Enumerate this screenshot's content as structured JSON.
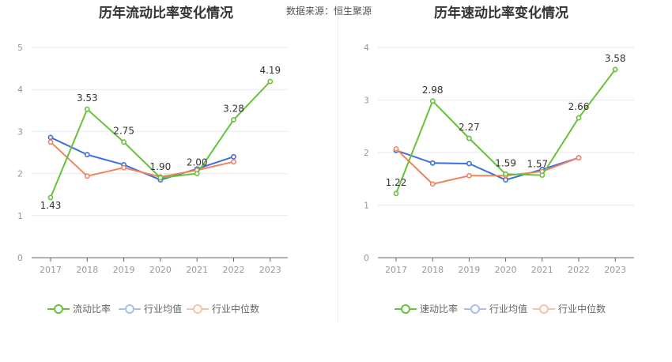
{
  "source_label": "数据来源：恒生聚源",
  "legend_colors": {
    "main": "#67c23a",
    "avg": "#3f6fd8",
    "median": "#f0845c"
  },
  "legend_faded": {
    "avg": "#a9c0ee",
    "median": "#f7c3ac"
  },
  "chart_data": [
    {
      "type": "line",
      "title": "历年流动比率变化情况",
      "categories": [
        "2017",
        "2018",
        "2019",
        "2020",
        "2021",
        "2022",
        "2023"
      ],
      "ylim": [
        0,
        5
      ],
      "yticks": [
        0,
        1,
        2,
        3,
        4,
        5
      ],
      "grid": true,
      "legend_position": "bottom",
      "series": [
        {
          "name": "流动比率",
          "values": [
            1.43,
            3.53,
            2.75,
            1.9,
            2.0,
            3.28,
            4.19
          ],
          "labels": [
            "1.43",
            "3.53",
            "2.75",
            "1.90",
            "2.00",
            "3.28",
            "4.19"
          ]
        },
        {
          "name": "行业均值",
          "values": [
            2.86,
            2.45,
            2.21,
            1.85,
            2.11,
            2.4,
            null
          ]
        },
        {
          "name": "行业中位数",
          "values": [
            2.75,
            1.94,
            2.14,
            1.92,
            2.08,
            2.28,
            null
          ]
        }
      ]
    },
    {
      "type": "line",
      "title": "历年速动比率变化情况",
      "categories": [
        "2017",
        "2018",
        "2019",
        "2020",
        "2021",
        "2022",
        "2023"
      ],
      "ylim": [
        0,
        4
      ],
      "yticks": [
        0,
        1,
        2,
        3,
        4
      ],
      "grid": true,
      "legend_position": "bottom",
      "series": [
        {
          "name": "速动比率",
          "values": [
            1.22,
            2.98,
            2.27,
            1.59,
            1.57,
            2.66,
            3.58
          ],
          "labels": [
            "1.22",
            "2.98",
            "2.27",
            "1.59",
            "1.57",
            "2.66",
            "3.58"
          ]
        },
        {
          "name": "行业均值",
          "values": [
            2.04,
            1.8,
            1.79,
            1.48,
            1.68,
            1.9,
            null
          ]
        },
        {
          "name": "行业中位数",
          "values": [
            2.07,
            1.4,
            1.56,
            1.56,
            1.64,
            1.9,
            null
          ]
        }
      ]
    }
  ]
}
